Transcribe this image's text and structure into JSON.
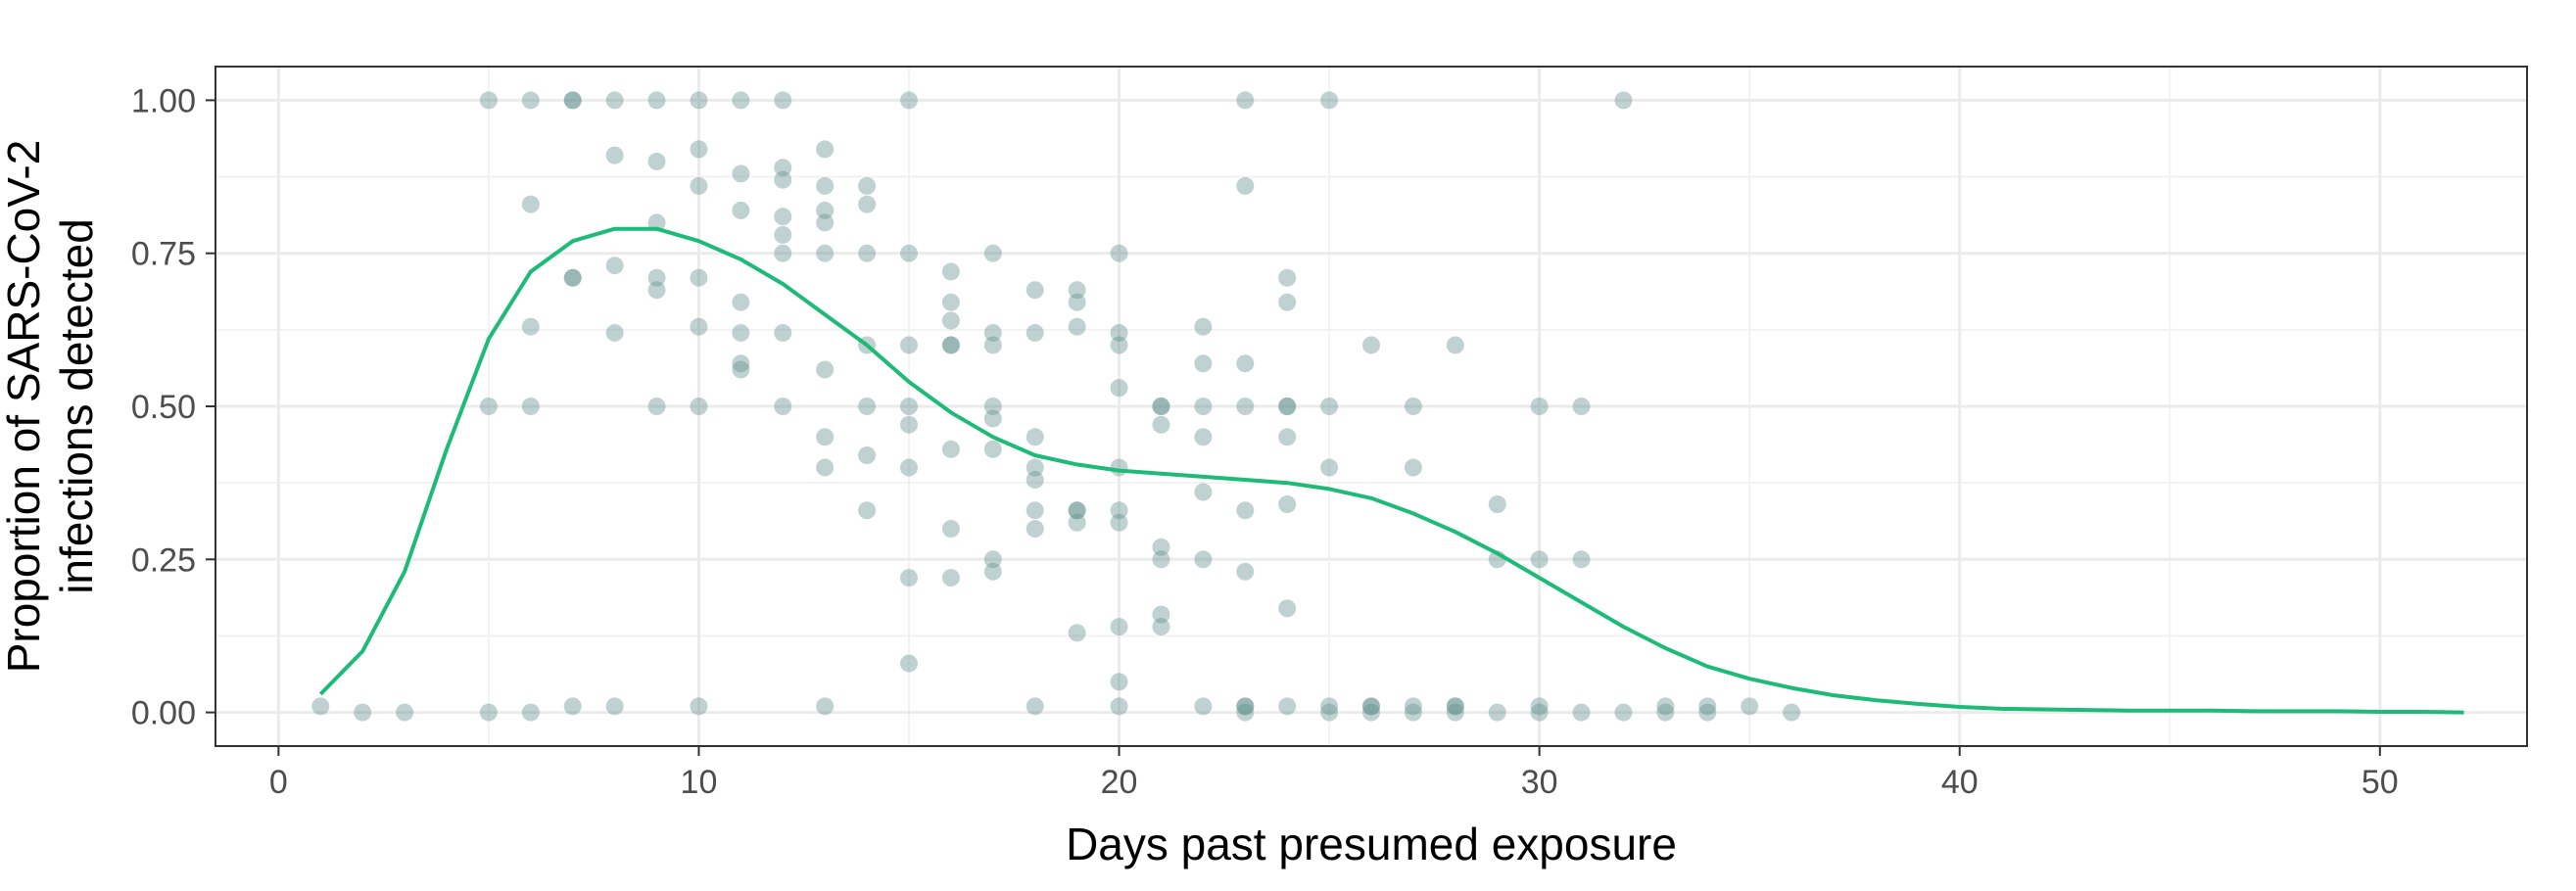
{
  "chart_data": {
    "type": "scatter",
    "title": "",
    "xlabel": "Days past presumed exposure",
    "ylabel_lines": [
      "Proportion of SARS-CoV-2",
      "infections detected"
    ],
    "xlim": [
      -1.5,
      53.5
    ],
    "ylim": [
      -0.055,
      1.055
    ],
    "x_ticks": [
      0,
      10,
      20,
      30,
      40,
      50
    ],
    "x_tick_labels": [
      "0",
      "10",
      "20",
      "30",
      "40",
      "50"
    ],
    "y_ticks": [
      0,
      0.25,
      0.5,
      0.75,
      1.0
    ],
    "y_tick_labels": [
      "0.00",
      "0.25",
      "0.50",
      "0.75",
      "1.00"
    ],
    "grid": true,
    "legend": "none",
    "point_color": "#5f8f8d",
    "line_color": "#1dbb77",
    "series": [
      {
        "kind": "points",
        "x": [
          1,
          2,
          3,
          5,
          5,
          5,
          6,
          6,
          6,
          6,
          6,
          7,
          7,
          7,
          7,
          7,
          8,
          8,
          8,
          8,
          8,
          9,
          9,
          9,
          9,
          9,
          9,
          10,
          10,
          10,
          10,
          10,
          10,
          10,
          11,
          11,
          11,
          11,
          11,
          11,
          11,
          12,
          12,
          12,
          12,
          12,
          12,
          12,
          12,
          13,
          13,
          13,
          13,
          13,
          13,
          13,
          13,
          13,
          14,
          14,
          14,
          14,
          14,
          14,
          14,
          15,
          15,
          15,
          15,
          15,
          15,
          15,
          15,
          16,
          16,
          16,
          16,
          16,
          16,
          16,
          16,
          17,
          17,
          17,
          17,
          17,
          17,
          17,
          17,
          18,
          18,
          18,
          18,
          18,
          18,
          18,
          18,
          19,
          19,
          19,
          19,
          19,
          19,
          19,
          20,
          20,
          20,
          20,
          20,
          20,
          20,
          20,
          20,
          20,
          21,
          21,
          21,
          21,
          21,
          21,
          21,
          22,
          22,
          22,
          22,
          22,
          22,
          22,
          23,
          23,
          23,
          23,
          23,
          23,
          23,
          23,
          23,
          24,
          24,
          24,
          24,
          24,
          24,
          24,
          24,
          25,
          25,
          25,
          25,
          25,
          26,
          26,
          26,
          26,
          27,
          27,
          27,
          27,
          28,
          28,
          28,
          28,
          29,
          29,
          29,
          30,
          30,
          30,
          30,
          31,
          31,
          31,
          32,
          32,
          33,
          33,
          34,
          34,
          35,
          36
        ],
        "y": [
          0.01,
          0,
          0,
          1.0,
          0.5,
          0,
          1.0,
          0.83,
          0.63,
          0.5,
          0,
          1.0,
          1.0,
          0.71,
          0.71,
          0.01,
          1.0,
          0.91,
          0.73,
          0.62,
          0.01,
          1.0,
          0.9,
          0.8,
          0.71,
          0.69,
          0.5,
          1.0,
          0.92,
          0.86,
          0.71,
          0.63,
          0.5,
          0.01,
          1.0,
          0.88,
          0.82,
          0.67,
          0.62,
          0.57,
          0.56,
          1.0,
          0.89,
          0.87,
          0.81,
          0.78,
          0.75,
          0.62,
          0.5,
          0.92,
          0.86,
          0.82,
          0.8,
          0.75,
          0.56,
          0.45,
          0.4,
          0.01,
          0.86,
          0.83,
          0.75,
          0.6,
          0.5,
          0.42,
          0.33,
          1.0,
          0.75,
          0.6,
          0.5,
          0.47,
          0.4,
          0.22,
          0.08,
          0.72,
          0.67,
          0.64,
          0.6,
          0.6,
          0.43,
          0.3,
          0.22,
          0.75,
          0.62,
          0.6,
          0.5,
          0.48,
          0.43,
          0.25,
          0.23,
          0.69,
          0.62,
          0.45,
          0.4,
          0.38,
          0.33,
          0.3,
          0.01,
          0.69,
          0.67,
          0.63,
          0.33,
          0.33,
          0.31,
          0.13,
          0.75,
          0.62,
          0.6,
          0.53,
          0.4,
          0.33,
          0.31,
          0.14,
          0.05,
          0.01,
          0.5,
          0.5,
          0.47,
          0.27,
          0.25,
          0.16,
          0.14,
          0.63,
          0.57,
          0.5,
          0.45,
          0.36,
          0.25,
          0.01,
          1.0,
          0.86,
          0.57,
          0.5,
          0.33,
          0.23,
          0.01,
          0.01,
          0,
          0.71,
          0.67,
          0.5,
          0.5,
          0.45,
          0.34,
          0.17,
          0.01,
          1.0,
          0.5,
          0.4,
          0.01,
          0,
          0.6,
          0.01,
          0,
          0.01,
          0.5,
          0.4,
          0.01,
          0,
          0.6,
          0.01,
          0,
          0.01,
          0.34,
          0.25,
          0,
          0.5,
          0.25,
          0.01,
          0,
          0.5,
          0.25,
          0,
          1.0,
          0,
          0.01,
          0,
          0.01,
          0,
          0.01,
          0
        ]
      },
      {
        "kind": "line",
        "name": "",
        "x": [
          1,
          2,
          3,
          4,
          5,
          6,
          7,
          8,
          9,
          10,
          11,
          12,
          13,
          14,
          15,
          16,
          17,
          18,
          19,
          20,
          21,
          22,
          23,
          24,
          25,
          26,
          27,
          28,
          29,
          30,
          31,
          32,
          33,
          34,
          35,
          36,
          37,
          38,
          39,
          40,
          41,
          42,
          43,
          44,
          45,
          46,
          47,
          48,
          49,
          50,
          51,
          52
        ],
        "y": [
          0.03,
          0.1,
          0.23,
          0.43,
          0.61,
          0.72,
          0.77,
          0.79,
          0.79,
          0.77,
          0.74,
          0.7,
          0.65,
          0.6,
          0.54,
          0.49,
          0.45,
          0.42,
          0.405,
          0.395,
          0.39,
          0.385,
          0.38,
          0.375,
          0.365,
          0.35,
          0.325,
          0.295,
          0.26,
          0.22,
          0.18,
          0.14,
          0.105,
          0.075,
          0.055,
          0.04,
          0.028,
          0.02,
          0.014,
          0.009,
          0.006,
          0.005,
          0.004,
          0.003,
          0.003,
          0.003,
          0.002,
          0.002,
          0.002,
          0.001,
          0.001,
          0
        ]
      }
    ]
  }
}
